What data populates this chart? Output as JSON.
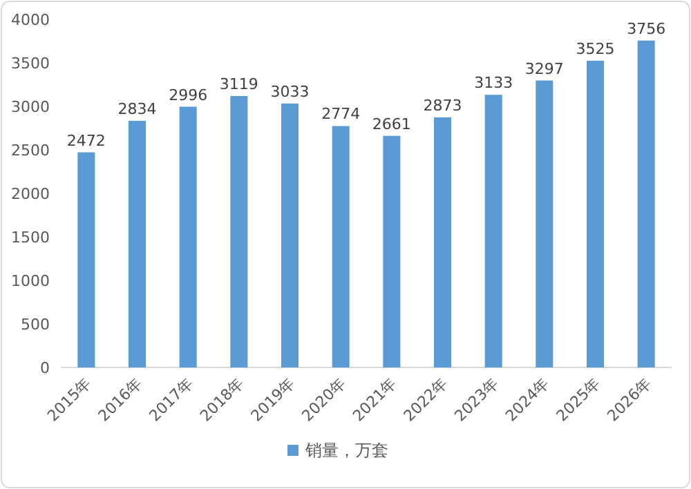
{
  "chart_data": {
    "type": "bar",
    "categories": [
      "2015年",
      "2016年",
      "2017年",
      "2018年",
      "2019年",
      "2020年",
      "2021年",
      "2022年",
      "2023年",
      "2024年",
      "2025年",
      "2026年"
    ],
    "series": [
      {
        "name": "销量，万套",
        "color": "#5b9bd5",
        "values": [
          2472,
          2834,
          2996,
          3119,
          3033,
          2774,
          2661,
          2873,
          3133,
          3297,
          3525,
          3756
        ]
      }
    ],
    "ylim": [
      0,
      4000
    ],
    "yticks": [
      0,
      500,
      1000,
      1500,
      2000,
      2500,
      3000,
      3500,
      4000
    ],
    "data_labels": true,
    "legend": "bottom"
  }
}
